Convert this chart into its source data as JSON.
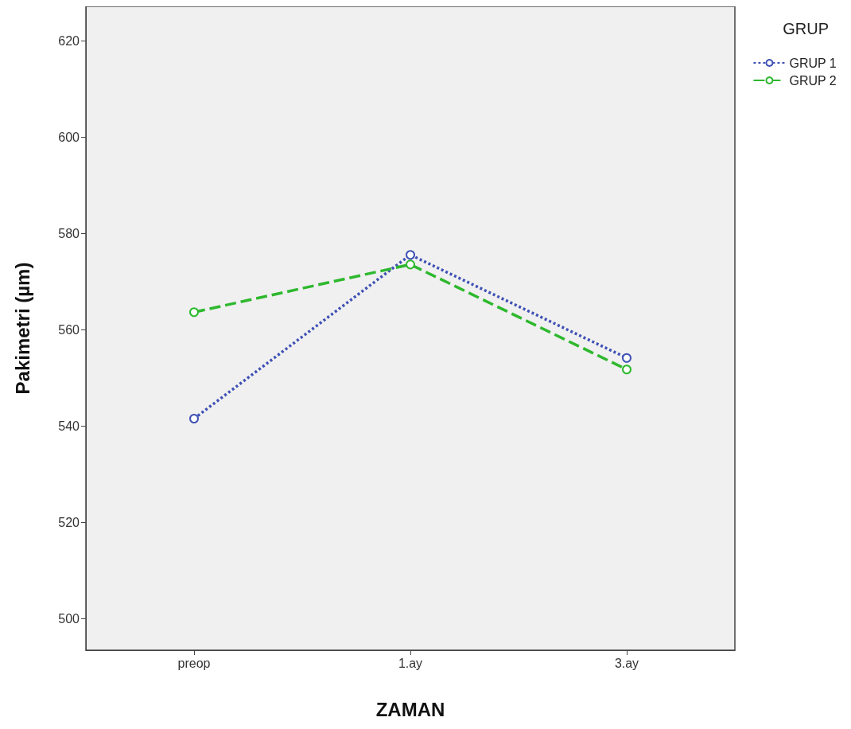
{
  "chart_data": {
    "type": "line",
    "xlabel": "ZAMAN",
    "ylabel": "Pakimetri (µm)",
    "legend_title": "GRUP",
    "categories": [
      "preop",
      "1.ay",
      "3.ay"
    ],
    "series": [
      {
        "name": "GRUP 1",
        "color": "#3f51b5",
        "values": [
          541.6,
          575.6,
          554.2
        ],
        "line_style": "dotted"
      },
      {
        "name": "GRUP 2",
        "color": "#2eb82e",
        "values": [
          563.7,
          573.6,
          551.8
        ],
        "line_style": "dashed"
      }
    ],
    "ylim": [
      493.5,
      627.2
    ],
    "yticks": [
      500,
      520,
      540,
      560,
      580,
      600,
      620
    ],
    "marker": "circle",
    "grid": false,
    "legend": "top right"
  }
}
